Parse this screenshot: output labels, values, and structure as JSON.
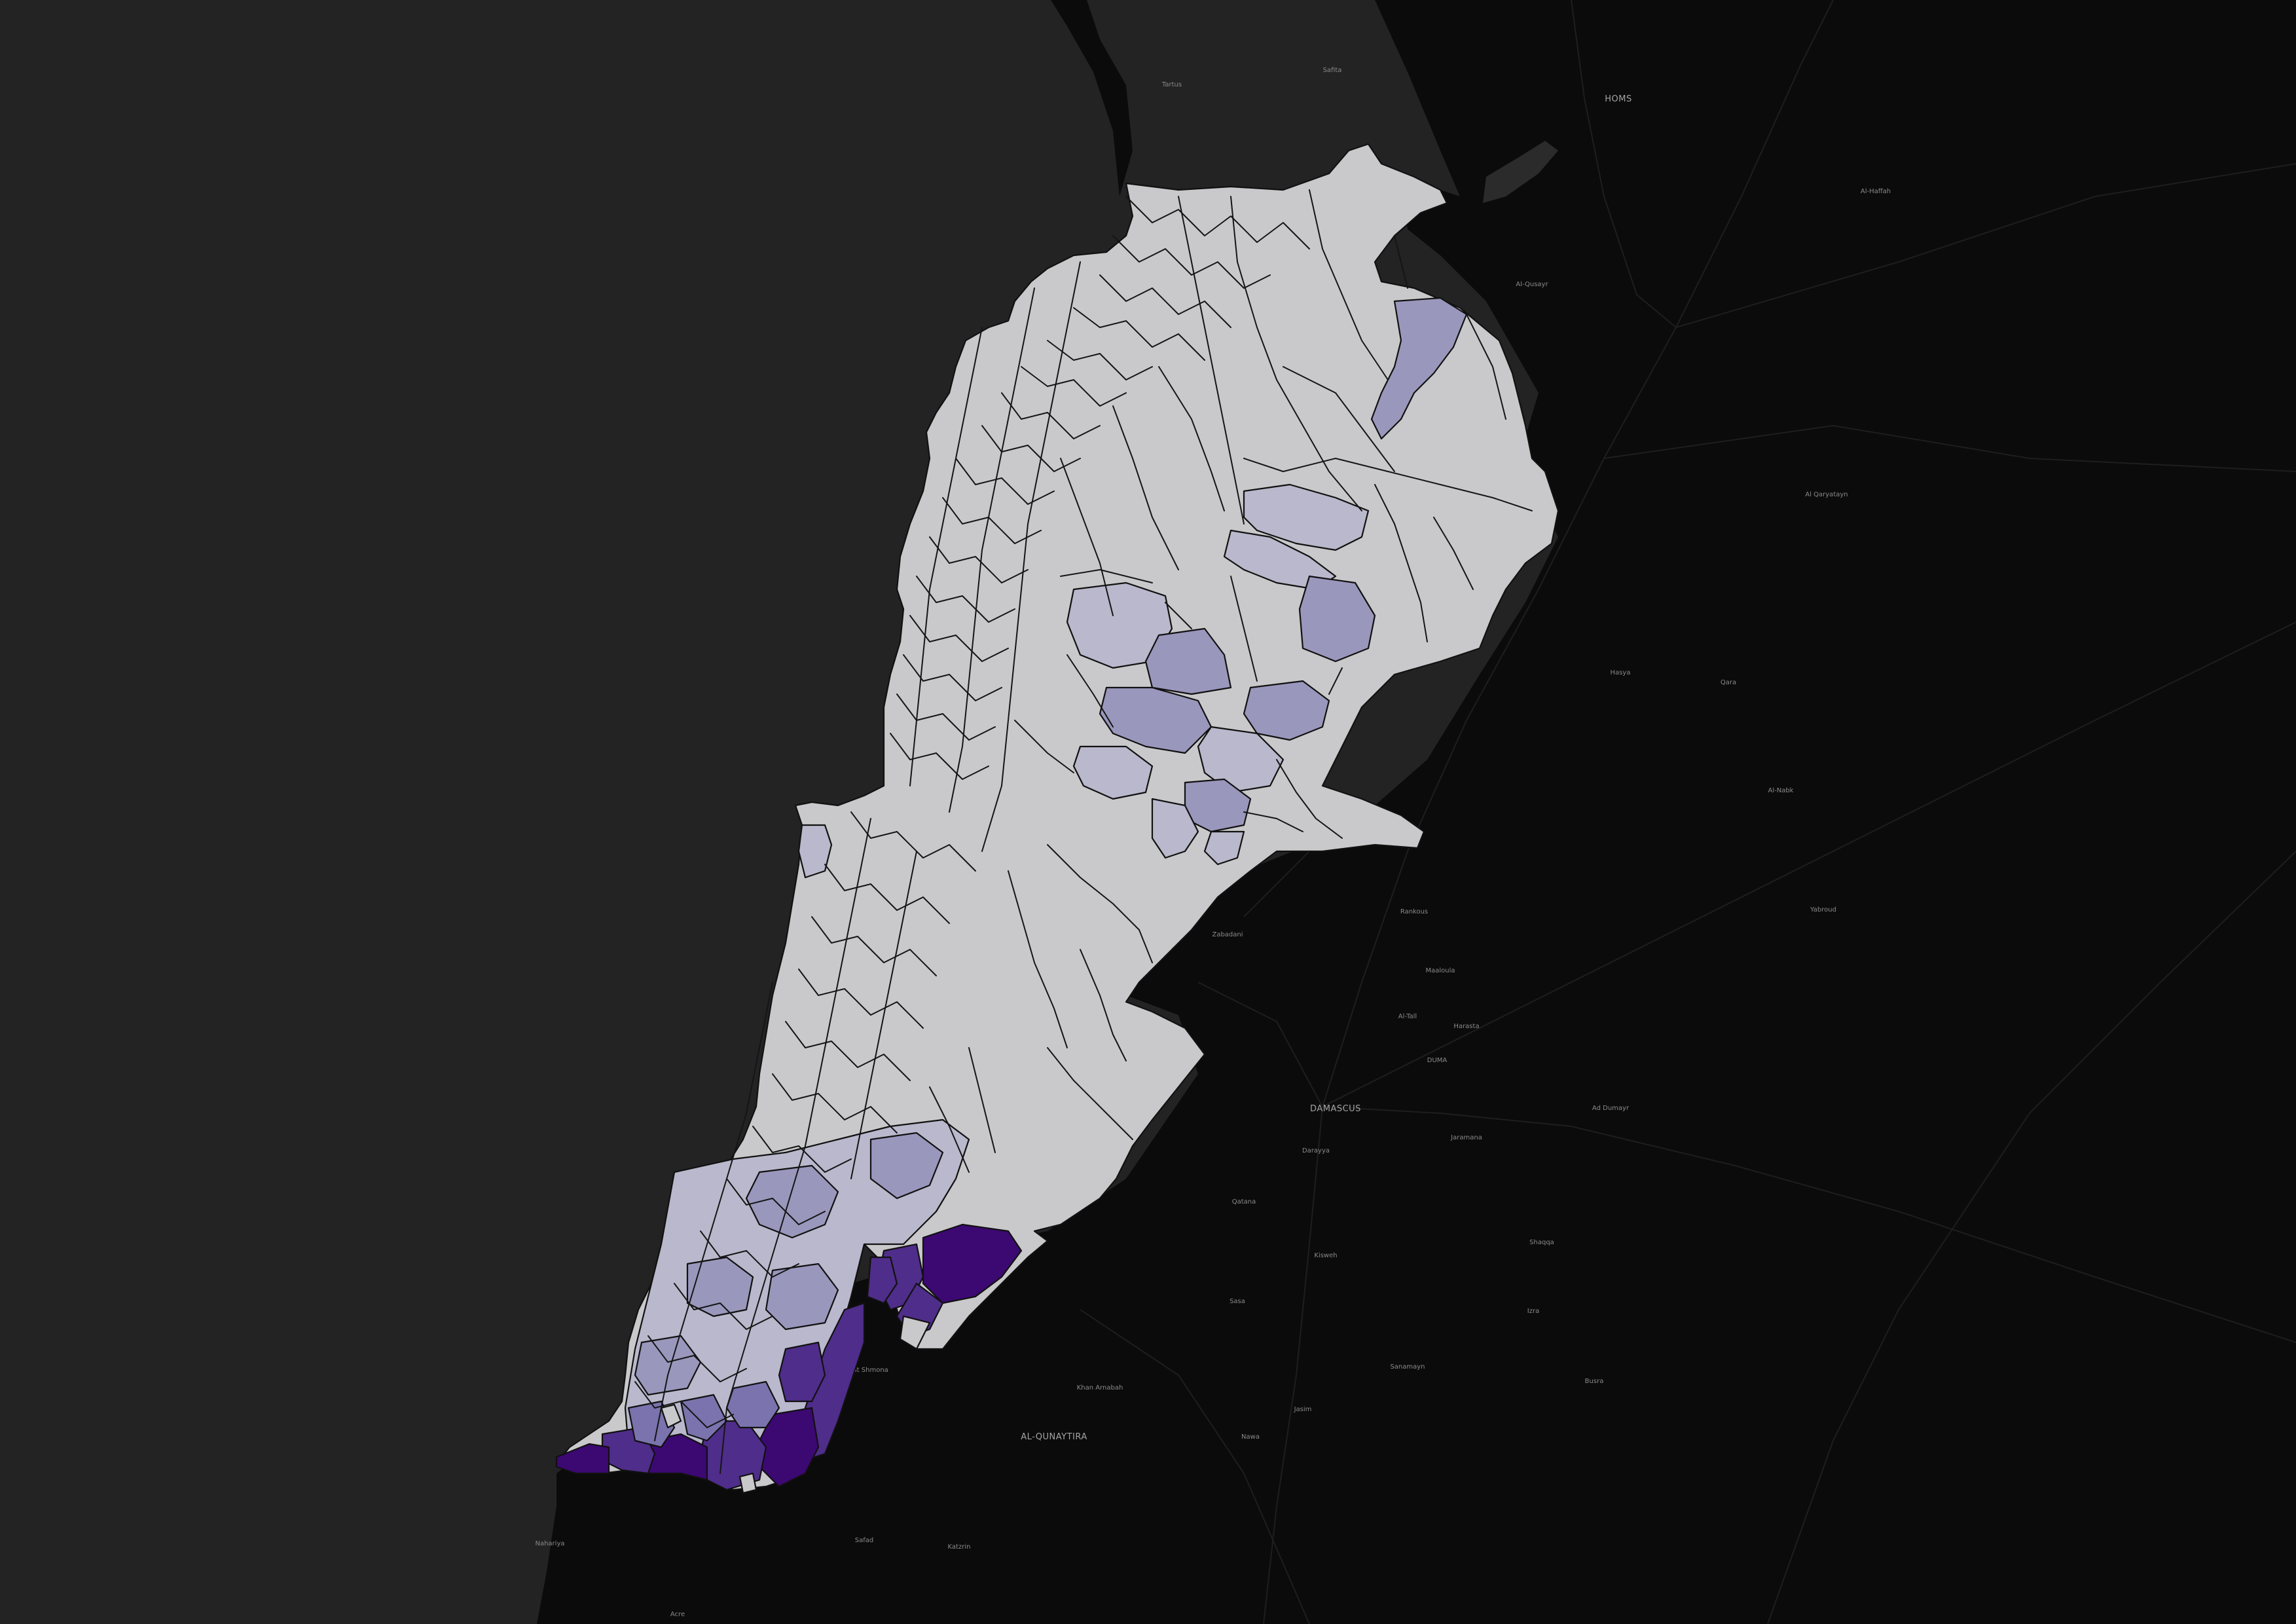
{
  "map": {
    "theme": "dark",
    "colors": {
      "sea": "#232323",
      "land": "#0b0b0b",
      "road": "#1e1e1e",
      "boundary": "#111111",
      "choropleth_low": "#c9c9cb",
      "choropleth_mid_low": "#b9b8cc",
      "choropleth_mid": "#9a97bd",
      "choropleth_mid_high": "#7a73ad",
      "choropleth_high": "#4f2d8a",
      "choropleth_max": "#3c0872"
    },
    "choropleth": {
      "palette": "Purples",
      "description_levels": [
        "low",
        "mid_low",
        "mid",
        "mid_high",
        "high",
        "max"
      ]
    },
    "labels": [
      {
        "text": "DAMASCUS",
        "major": true
      },
      {
        "text": "AL-QUNAYTIRA",
        "major": true
      },
      {
        "text": "HOMS",
        "major": true
      },
      {
        "text": "DUMA",
        "major": false
      },
      {
        "text": "Al-Nabk",
        "major": false
      },
      {
        "text": "Yabroud",
        "major": false
      },
      {
        "text": "Qara",
        "major": false
      },
      {
        "text": "Al-Qusayr",
        "major": false
      },
      {
        "text": "Tartus",
        "major": false
      },
      {
        "text": "Al-Haffah",
        "major": false
      },
      {
        "text": "Safita",
        "major": false
      },
      {
        "text": "Zabadani",
        "major": false
      },
      {
        "text": "Qatana",
        "major": false
      },
      {
        "text": "Darayya",
        "major": false
      },
      {
        "text": "Jaramana",
        "major": false
      },
      {
        "text": "Al-Tall",
        "major": false
      },
      {
        "text": "Harasta",
        "major": false
      },
      {
        "text": "Kisweh",
        "major": false
      },
      {
        "text": "Sasa",
        "major": false
      },
      {
        "text": "Khan Arnabah",
        "major": false
      },
      {
        "text": "Nawa",
        "major": false
      },
      {
        "text": "Jasim",
        "major": false
      },
      {
        "text": "Sanamayn",
        "major": false
      },
      {
        "text": "Safad",
        "major": false
      },
      {
        "text": "Nahariya",
        "major": false
      },
      {
        "text": "Kiryat Shmona",
        "major": false
      },
      {
        "text": "Katzrin",
        "major": false
      },
      {
        "text": "Acre",
        "major": false
      },
      {
        "text": "Ad Dumayr",
        "major": false
      },
      {
        "text": "Al Qaryatayn",
        "major": false
      },
      {
        "text": "Rankous",
        "major": false
      },
      {
        "text": "Maaloula",
        "major": false
      },
      {
        "text": "Hasya",
        "major": false
      },
      {
        "text": "Shaqqa",
        "major": false
      },
      {
        "text": "Izra",
        "major": false
      },
      {
        "text": "Busra",
        "major": false
      }
    ]
  }
}
